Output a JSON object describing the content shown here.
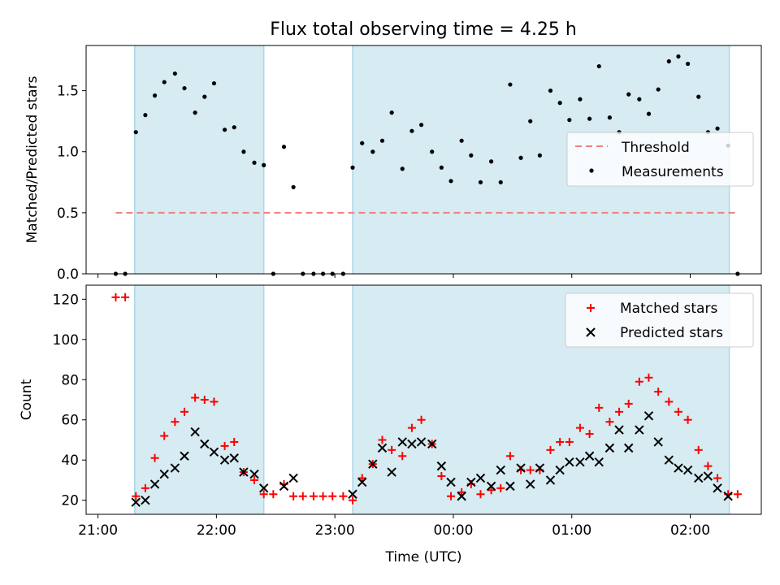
{
  "title": "Flux total observing time = 4.25 h",
  "colors": {
    "shade": "#add8e6",
    "threshold": "#f08080",
    "matched": "#ff0000",
    "predicted": "#000000",
    "measurement": "#000000"
  },
  "chart_data": [
    {
      "type": "scatter",
      "panel": "top",
      "ylabel": "Matched/Predicted stars",
      "xlim": [
        -0.1,
        5.6
      ],
      "ylim": [
        0,
        1.87
      ],
      "yticks": [
        0.0,
        0.5,
        1.0,
        1.5
      ],
      "ytick_labels": [
        "0.0",
        "0.5",
        "1.0",
        "1.5"
      ],
      "shaded_intervals": [
        [
          0.31,
          1.4
        ],
        [
          2.15,
          5.33
        ]
      ],
      "threshold": {
        "name": "Threshold",
        "value": 0.5,
        "x_range": [
          0.15,
          5.4
        ]
      },
      "legend": {
        "position": "right",
        "entries": [
          "Threshold",
          "Measurements"
        ]
      },
      "series": [
        {
          "name": "Measurements",
          "points": [
            [
              0.15,
              0.0
            ],
            [
              0.23,
              0.0
            ],
            [
              0.32,
              1.16
            ],
            [
              0.4,
              1.3
            ],
            [
              0.48,
              1.46
            ],
            [
              0.56,
              1.57
            ],
            [
              0.65,
              1.64
            ],
            [
              0.73,
              1.52
            ],
            [
              0.82,
              1.32
            ],
            [
              0.9,
              1.45
            ],
            [
              0.98,
              1.56
            ],
            [
              1.07,
              1.18
            ],
            [
              1.15,
              1.2
            ],
            [
              1.23,
              1.0
            ],
            [
              1.32,
              0.91
            ],
            [
              1.4,
              0.89
            ],
            [
              1.48,
              0.0
            ],
            [
              1.57,
              1.04
            ],
            [
              1.65,
              0.71
            ],
            [
              1.73,
              0.0
            ],
            [
              1.82,
              0.0
            ],
            [
              1.9,
              0.0
            ],
            [
              1.98,
              0.0
            ],
            [
              2.07,
              0.0
            ],
            [
              2.15,
              0.87
            ],
            [
              2.23,
              1.07
            ],
            [
              2.32,
              1.0
            ],
            [
              2.4,
              1.09
            ],
            [
              2.48,
              1.32
            ],
            [
              2.57,
              0.86
            ],
            [
              2.65,
              1.17
            ],
            [
              2.73,
              1.22
            ],
            [
              2.82,
              1.0
            ],
            [
              2.9,
              0.87
            ],
            [
              2.98,
              0.76
            ],
            [
              3.07,
              1.09
            ],
            [
              3.15,
              0.97
            ],
            [
              3.23,
              0.75
            ],
            [
              3.32,
              0.92
            ],
            [
              3.4,
              0.75
            ],
            [
              3.48,
              1.55
            ],
            [
              3.57,
              0.95
            ],
            [
              3.65,
              1.25
            ],
            [
              3.73,
              0.97
            ],
            [
              3.82,
              1.5
            ],
            [
              3.9,
              1.4
            ],
            [
              3.98,
              1.26
            ],
            [
              4.07,
              1.43
            ],
            [
              4.15,
              1.27
            ],
            [
              4.23,
              1.7
            ],
            [
              4.32,
              1.28
            ],
            [
              4.4,
              1.16
            ],
            [
              4.48,
              1.47
            ],
            [
              4.57,
              1.43
            ],
            [
              4.65,
              1.31
            ],
            [
              4.73,
              1.51
            ],
            [
              4.82,
              1.74
            ],
            [
              4.9,
              1.78
            ],
            [
              4.98,
              1.72
            ],
            [
              5.07,
              1.45
            ],
            [
              5.15,
              1.16
            ],
            [
              5.23,
              1.19
            ],
            [
              5.32,
              1.05
            ],
            [
              5.4,
              0.0
            ]
          ]
        }
      ]
    },
    {
      "type": "scatter",
      "panel": "bottom",
      "xlabel": "Time (UTC)",
      "ylabel": "Count",
      "xlim": [
        -0.1,
        5.6
      ],
      "ylim": [
        13,
        127
      ],
      "yticks": [
        20,
        40,
        60,
        80,
        100,
        120
      ],
      "ytick_labels": [
        "20",
        "40",
        "60",
        "80",
        "100",
        "120"
      ],
      "xticks": [
        0,
        1,
        2,
        3,
        4,
        5
      ],
      "xtick_labels": [
        "21:00",
        "22:00",
        "23:00",
        "00:00",
        "01:00",
        "02:00"
      ],
      "shaded_intervals": [
        [
          0.31,
          1.4
        ],
        [
          2.15,
          5.33
        ]
      ],
      "legend": {
        "position": "top-right",
        "entries": [
          "Matched stars",
          "Predicted stars"
        ]
      },
      "series": [
        {
          "name": "Matched stars",
          "marker": "plus",
          "points": [
            [
              0.15,
              121
            ],
            [
              0.23,
              121
            ],
            [
              0.32,
              22
            ],
            [
              0.4,
              26
            ],
            [
              0.48,
              41
            ],
            [
              0.56,
              52
            ],
            [
              0.65,
              59
            ],
            [
              0.73,
              64
            ],
            [
              0.82,
              71
            ],
            [
              0.9,
              70
            ],
            [
              0.98,
              69
            ],
            [
              1.07,
              47
            ],
            [
              1.15,
              49
            ],
            [
              1.23,
              34
            ],
            [
              1.32,
              30
            ],
            [
              1.4,
              23
            ],
            [
              1.48,
              23
            ],
            [
              1.57,
              28
            ],
            [
              1.65,
              22
            ],
            [
              1.73,
              22
            ],
            [
              1.82,
              22
            ],
            [
              1.9,
              22
            ],
            [
              1.98,
              22
            ],
            [
              2.07,
              22
            ],
            [
              2.15,
              20
            ],
            [
              2.23,
              31
            ],
            [
              2.32,
              38
            ],
            [
              2.4,
              50
            ],
            [
              2.48,
              45
            ],
            [
              2.57,
              42
            ],
            [
              2.65,
              56
            ],
            [
              2.73,
              60
            ],
            [
              2.82,
              48
            ],
            [
              2.9,
              32
            ],
            [
              2.98,
              22
            ],
            [
              3.07,
              24
            ],
            [
              3.15,
              28
            ],
            [
              3.23,
              23
            ],
            [
              3.32,
              25
            ],
            [
              3.4,
              26
            ],
            [
              3.48,
              42
            ],
            [
              3.57,
              35
            ],
            [
              3.65,
              35
            ],
            [
              3.73,
              35
            ],
            [
              3.82,
              45
            ],
            [
              3.9,
              49
            ],
            [
              3.98,
              49
            ],
            [
              4.07,
              56
            ],
            [
              4.15,
              53
            ],
            [
              4.23,
              66
            ],
            [
              4.32,
              59
            ],
            [
              4.4,
              64
            ],
            [
              4.48,
              68
            ],
            [
              4.57,
              79
            ],
            [
              4.65,
              81
            ],
            [
              4.73,
              74
            ],
            [
              4.82,
              69
            ],
            [
              4.9,
              64
            ],
            [
              4.98,
              60
            ],
            [
              5.07,
              45
            ],
            [
              5.15,
              37
            ],
            [
              5.23,
              31
            ],
            [
              5.32,
              23
            ],
            [
              5.4,
              23
            ]
          ]
        },
        {
          "name": "Predicted stars",
          "marker": "x",
          "points": [
            [
              0.32,
              19
            ],
            [
              0.4,
              20
            ],
            [
              0.48,
              28
            ],
            [
              0.56,
              33
            ],
            [
              0.65,
              36
            ],
            [
              0.73,
              42
            ],
            [
              0.82,
              54
            ],
            [
              0.9,
              48
            ],
            [
              0.98,
              44
            ],
            [
              1.07,
              40
            ],
            [
              1.15,
              41
            ],
            [
              1.23,
              34
            ],
            [
              1.32,
              33
            ],
            [
              1.4,
              26
            ],
            [
              1.57,
              27
            ],
            [
              1.65,
              31
            ],
            [
              2.15,
              23
            ],
            [
              2.23,
              29
            ],
            [
              2.32,
              38
            ],
            [
              2.4,
              46
            ],
            [
              2.48,
              34
            ],
            [
              2.57,
              49
            ],
            [
              2.65,
              48
            ],
            [
              2.73,
              49
            ],
            [
              2.82,
              48
            ],
            [
              2.9,
              37
            ],
            [
              2.98,
              29
            ],
            [
              3.07,
              22
            ],
            [
              3.15,
              29
            ],
            [
              3.23,
              31
            ],
            [
              3.32,
              27
            ],
            [
              3.4,
              35
            ],
            [
              3.48,
              27
            ],
            [
              3.57,
              36
            ],
            [
              3.65,
              28
            ],
            [
              3.73,
              36
            ],
            [
              3.82,
              30
            ],
            [
              3.9,
              35
            ],
            [
              3.98,
              39
            ],
            [
              4.07,
              39
            ],
            [
              4.15,
              42
            ],
            [
              4.23,
              39
            ],
            [
              4.32,
              46
            ],
            [
              4.4,
              55
            ],
            [
              4.48,
              46
            ],
            [
              4.57,
              55
            ],
            [
              4.65,
              62
            ],
            [
              4.73,
              49
            ],
            [
              4.82,
              40
            ],
            [
              4.9,
              36
            ],
            [
              4.98,
              35
            ],
            [
              5.07,
              31
            ],
            [
              5.15,
              32
            ],
            [
              5.23,
              26
            ],
            [
              5.32,
              22
            ]
          ]
        }
      ]
    }
  ]
}
